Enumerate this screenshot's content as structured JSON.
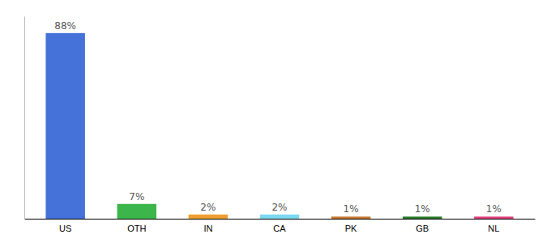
{
  "chart_data": {
    "type": "bar",
    "categories": [
      "US",
      "OTH",
      "IN",
      "CA",
      "PK",
      "GB",
      "NL"
    ],
    "values": [
      88,
      7,
      2,
      2,
      1,
      1,
      1
    ],
    "value_labels": [
      "88%",
      "7%",
      "2%",
      "2%",
      "1%",
      "1%",
      "1%"
    ],
    "colors": [
      "#4472d8",
      "#3cb54a",
      "#f0a030",
      "#7dd8f0",
      "#c87830",
      "#2a7a2a",
      "#e0407a"
    ],
    "ylim": [
      0,
      96
    ],
    "grid": false,
    "data_labels": true,
    "tick_labels": "x"
  }
}
